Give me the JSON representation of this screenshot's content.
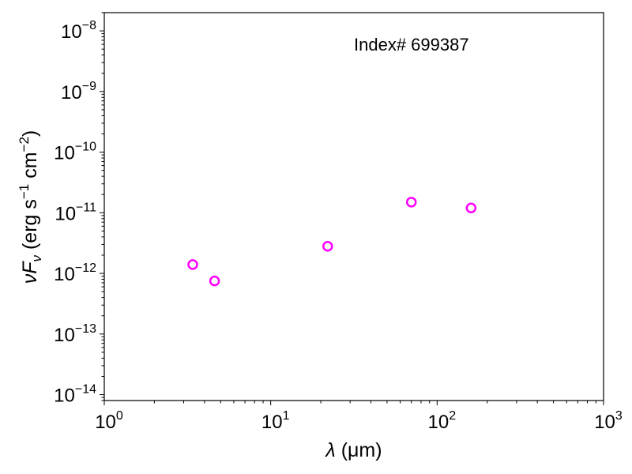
{
  "chart_data": {
    "type": "scatter",
    "annotation": "Index# 699387",
    "xlabel": {
      "symbol": "λ",
      "unit": "(μm)"
    },
    "ylabel": {
      "symbol": "νF",
      "subscript": "ν",
      "unit_a": "(erg s",
      "exp_a": "−1",
      "unit_b": " cm",
      "exp_b": "−2",
      "unit_c": ")"
    },
    "x_scale": "log",
    "y_scale": "log",
    "xlim": [
      1,
      1000
    ],
    "ylim": [
      8e-15,
      2e-08
    ],
    "grid": false,
    "marker": {
      "shape": "open-circle",
      "color": "#ff00ff"
    },
    "x_ticks": [
      {
        "value": 1,
        "base": "10",
        "exp": "0"
      },
      {
        "value": 10,
        "base": "10",
        "exp": "1"
      },
      {
        "value": 100,
        "base": "10",
        "exp": "2"
      },
      {
        "value": 1000,
        "base": "10",
        "exp": "3"
      }
    ],
    "y_ticks": [
      {
        "value": 1e-14,
        "base": "10",
        "exp": "−14"
      },
      {
        "value": 1e-13,
        "base": "10",
        "exp": "−13"
      },
      {
        "value": 1e-12,
        "base": "10",
        "exp": "−12"
      },
      {
        "value": 1e-11,
        "base": "10",
        "exp": "−11"
      },
      {
        "value": 1e-10,
        "base": "10",
        "exp": "−10"
      },
      {
        "value": 1e-09,
        "base": "10",
        "exp": "−9"
      },
      {
        "value": 1e-08,
        "base": "10",
        "exp": "−8"
      }
    ],
    "points": [
      {
        "x": 3.4,
        "y": 1.4e-12
      },
      {
        "x": 4.6,
        "y": 7.5e-13
      },
      {
        "x": 22,
        "y": 2.8e-12
      },
      {
        "x": 70,
        "y": 1.5e-11
      },
      {
        "x": 160,
        "y": 1.2e-11
      }
    ]
  }
}
